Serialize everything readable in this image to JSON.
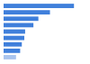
{
  "chart_data": {
    "type": "bar",
    "orientation": "horizontal",
    "categories": [
      null,
      null,
      null,
      null,
      null,
      null,
      null,
      null,
      null
    ],
    "values": [
      85,
      56,
      42,
      36,
      26,
      25,
      22,
      20,
      15
    ],
    "colors": [
      "#3f7fdb",
      "#3f7fdb",
      "#3f7fdb",
      "#3f7fdb",
      "#3f7fdb",
      "#3f7fdb",
      "#3f7fdb",
      "#3f7fdb",
      "#a9c4ee"
    ],
    "xlim": [
      0,
      100
    ],
    "grid": false,
    "tick_labels": false
  }
}
